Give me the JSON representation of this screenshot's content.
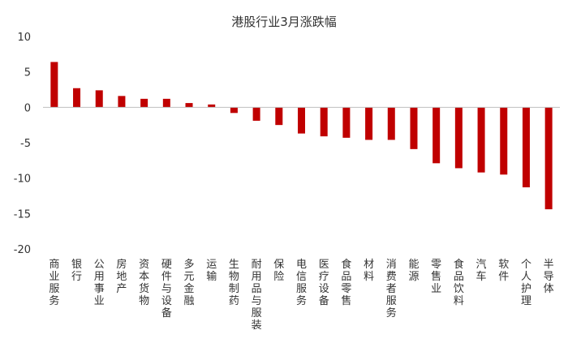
{
  "chart_data": {
    "type": "bar",
    "title": "港股行业3月涨跌幅",
    "xlabel": "",
    "ylabel": "",
    "ylim": [
      -20,
      10
    ],
    "yticks": [
      "10",
      "5",
      "0",
      "-5",
      "-10",
      "-15",
      "-20"
    ],
    "grid": false,
    "legend": "none",
    "bar_color": "#c00000",
    "categories": [
      "商业服务",
      "银行",
      "公用事业",
      "房地产",
      "资本货物",
      "硬件与设备",
      "多元金融",
      "运输",
      "生物制药",
      "耐用品与服装",
      "保险",
      "电信服务",
      "医疗设备",
      "食品零售",
      "材料",
      "消费者服务",
      "能源",
      "零售业",
      "食品饮料",
      "汽车",
      "软件",
      "个人护理",
      "半导体"
    ],
    "values": [
      6.4,
      2.7,
      2.4,
      1.6,
      1.2,
      1.2,
      0.6,
      0.4,
      -0.8,
      -1.9,
      -2.5,
      -3.7,
      -4.1,
      -4.3,
      -4.6,
      -4.6,
      -5.9,
      -7.9,
      -8.6,
      -9.2,
      -9.5,
      -11.3,
      -14.4
    ]
  }
}
